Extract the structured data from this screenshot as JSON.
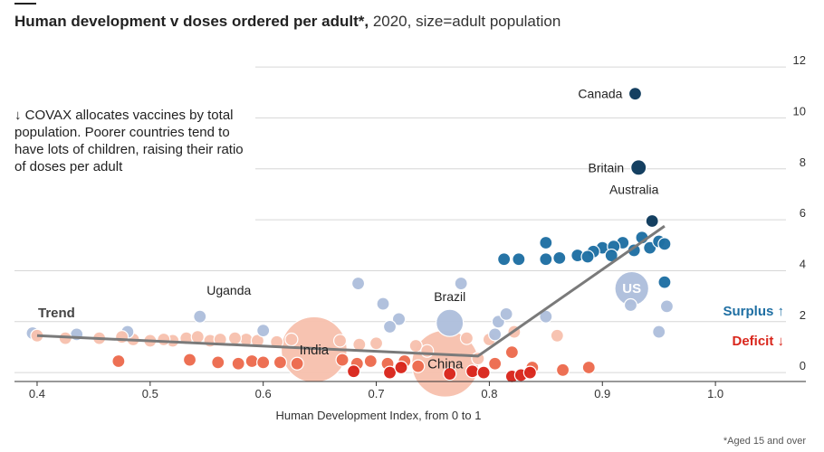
{
  "title": {
    "main": "Human development v doses ordered per adult*,",
    "sub": " 2020, size=adult population"
  },
  "annotation": "↓ COVAX allocates vaccines by total population. Poorer countries tend to have lots of children, raising their ratio of doses per adult",
  "footnote": "*Aged 15 and over",
  "colors": {
    "surplus_dark": "#0d3a5c",
    "surplus_mid": "#1f6fa3",
    "surplus_light": "#aebfdc",
    "deficit_light": "#f7c1ae",
    "deficit_mid": "#ec6b4e",
    "deficit_dark": "#d9261c",
    "trend": "#7a7a7a",
    "surplus_label": "#1f6fa3",
    "deficit_label": "#d9261c"
  },
  "chart_data": {
    "type": "scatter",
    "xlabel": "Human Development Index, from 0 to 1",
    "ylabel": "",
    "xlim": [
      0.38,
      1.08
    ],
    "ylim": [
      -0.35,
      12.5
    ],
    "x_ticks": [
      0.4,
      0.5,
      0.6,
      0.7,
      0.8,
      0.9,
      1.0
    ],
    "x_tick_labels": [
      "0.4",
      "0.5",
      "0.6",
      "0.7",
      "0.8",
      "0.9",
      "1.0"
    ],
    "y_ticks": [
      0,
      2,
      4,
      6,
      8,
      10,
      12
    ],
    "grid": true,
    "legend": {
      "surplus": "Surplus ↑",
      "deficit": "Deficit ↓"
    },
    "trend": {
      "label": "Trend",
      "points": [
        [
          0.4,
          1.45
        ],
        [
          0.79,
          0.65
        ],
        [
          0.955,
          5.75
        ]
      ]
    },
    "labelled_points": [
      {
        "name": "Canada",
        "x": 0.929,
        "y": 10.95,
        "pop": 32,
        "group": "surplus_dark"
      },
      {
        "name": "Britain",
        "x": 0.932,
        "y": 8.05,
        "pop": 55,
        "group": "surplus_dark"
      },
      {
        "name": "Australia",
        "x": 0.944,
        "y": 5.95,
        "pop": 21,
        "group": "surplus_dark"
      },
      {
        "name": "US",
        "x": 0.926,
        "y": 3.3,
        "pop": 265,
        "group": "surplus_light"
      },
      {
        "name": "Uganda",
        "x": 0.544,
        "y": 2.2,
        "pop": 22,
        "group": "surplus_light"
      },
      {
        "name": "Brazil",
        "x": 0.765,
        "y": 1.95,
        "pop": 170,
        "group": "surplus_light"
      },
      {
        "name": "India",
        "x": 0.645,
        "y": 0.9,
        "pop": 1000,
        "group": "deficit_light"
      },
      {
        "name": "China",
        "x": 0.761,
        "y": 0.35,
        "pop": 1150,
        "group": "deficit_light"
      }
    ],
    "points": [
      {
        "x": 0.396,
        "y": 1.55,
        "pop": 10,
        "group": "surplus_light"
      },
      {
        "x": 0.435,
        "y": 1.5,
        "pop": 8,
        "group": "surplus_light"
      },
      {
        "x": 0.48,
        "y": 1.6,
        "pop": 8,
        "group": "surplus_light"
      },
      {
        "x": 0.6,
        "y": 1.65,
        "pop": 6,
        "group": "surplus_light"
      },
      {
        "x": 0.684,
        "y": 3.5,
        "pop": 12,
        "group": "surplus_light"
      },
      {
        "x": 0.706,
        "y": 2.7,
        "pop": 18,
        "group": "surplus_light"
      },
      {
        "x": 0.72,
        "y": 2.1,
        "pop": 38,
        "group": "surplus_light"
      },
      {
        "x": 0.712,
        "y": 1.8,
        "pop": 12,
        "group": "surplus_light"
      },
      {
        "x": 0.775,
        "y": 3.5,
        "pop": 12,
        "group": "surplus_light"
      },
      {
        "x": 0.808,
        "y": 2.0,
        "pop": 8,
        "group": "surplus_light"
      },
      {
        "x": 0.815,
        "y": 2.3,
        "pop": 8,
        "group": "surplus_light"
      },
      {
        "x": 0.805,
        "y": 1.5,
        "pop": 6,
        "group": "surplus_light"
      },
      {
        "x": 0.85,
        "y": 2.2,
        "pop": 10,
        "group": "surplus_light"
      },
      {
        "x": 0.925,
        "y": 2.65,
        "pop": 15,
        "group": "surplus_light"
      },
      {
        "x": 0.95,
        "y": 1.6,
        "pop": 7,
        "group": "surplus_light"
      },
      {
        "x": 0.957,
        "y": 2.6,
        "pop": 7,
        "group": "surplus_light"
      },
      {
        "x": 0.813,
        "y": 4.45,
        "pop": 8,
        "group": "surplus_mid"
      },
      {
        "x": 0.826,
        "y": 4.45,
        "pop": 8,
        "group": "surplus_mid"
      },
      {
        "x": 0.85,
        "y": 5.1,
        "pop": 9,
        "group": "surplus_mid"
      },
      {
        "x": 0.85,
        "y": 4.45,
        "pop": 6,
        "group": "surplus_mid"
      },
      {
        "x": 0.862,
        "y": 4.5,
        "pop": 8,
        "group": "surplus_mid"
      },
      {
        "x": 0.878,
        "y": 4.6,
        "pop": 12,
        "group": "surplus_mid"
      },
      {
        "x": 0.892,
        "y": 4.75,
        "pop": 14,
        "group": "surplus_mid"
      },
      {
        "x": 0.9,
        "y": 4.9,
        "pop": 16,
        "group": "surplus_mid"
      },
      {
        "x": 0.91,
        "y": 4.95,
        "pop": 12,
        "group": "surplus_mid"
      },
      {
        "x": 0.918,
        "y": 5.1,
        "pop": 22,
        "group": "surplus_mid"
      },
      {
        "x": 0.928,
        "y": 4.8,
        "pop": 12,
        "group": "surplus_mid"
      },
      {
        "x": 0.935,
        "y": 5.3,
        "pop": 16,
        "group": "surplus_mid"
      },
      {
        "x": 0.942,
        "y": 4.9,
        "pop": 12,
        "group": "surplus_mid"
      },
      {
        "x": 0.95,
        "y": 5.15,
        "pop": 10,
        "group": "surplus_mid"
      },
      {
        "x": 0.955,
        "y": 5.05,
        "pop": 8,
        "group": "surplus_mid"
      },
      {
        "x": 0.908,
        "y": 4.6,
        "pop": 9,
        "group": "surplus_mid"
      },
      {
        "x": 0.887,
        "y": 4.55,
        "pop": 8,
        "group": "surplus_mid"
      },
      {
        "x": 0.955,
        "y": 3.55,
        "pop": 8,
        "group": "surplus_mid"
      },
      {
        "x": 0.4,
        "y": 1.45,
        "pop": 8,
        "group": "deficit_light"
      },
      {
        "x": 0.425,
        "y": 1.35,
        "pop": 7,
        "group": "deficit_light"
      },
      {
        "x": 0.455,
        "y": 1.35,
        "pop": 10,
        "group": "deficit_light"
      },
      {
        "x": 0.475,
        "y": 1.4,
        "pop": 7,
        "group": "deficit_light"
      },
      {
        "x": 0.485,
        "y": 1.3,
        "pop": 12,
        "group": "deficit_light"
      },
      {
        "x": 0.5,
        "y": 1.25,
        "pop": 8,
        "group": "deficit_light"
      },
      {
        "x": 0.512,
        "y": 1.3,
        "pop": 7,
        "group": "deficit_light"
      },
      {
        "x": 0.52,
        "y": 1.25,
        "pop": 10,
        "group": "deficit_light"
      },
      {
        "x": 0.532,
        "y": 1.35,
        "pop": 18,
        "group": "deficit_light"
      },
      {
        "x": 0.542,
        "y": 1.4,
        "pop": 12,
        "group": "deficit_light"
      },
      {
        "x": 0.553,
        "y": 1.25,
        "pop": 8,
        "group": "deficit_light"
      },
      {
        "x": 0.562,
        "y": 1.3,
        "pop": 8,
        "group": "deficit_light"
      },
      {
        "x": 0.575,
        "y": 1.35,
        "pop": 10,
        "group": "deficit_light"
      },
      {
        "x": 0.585,
        "y": 1.3,
        "pop": 12,
        "group": "deficit_light"
      },
      {
        "x": 0.595,
        "y": 1.25,
        "pop": 8,
        "group": "deficit_light"
      },
      {
        "x": 0.612,
        "y": 1.2,
        "pop": 8,
        "group": "deficit_light"
      },
      {
        "x": 0.625,
        "y": 1.3,
        "pop": 12,
        "group": "deficit_light"
      },
      {
        "x": 0.668,
        "y": 1.25,
        "pop": 10,
        "group": "deficit_light"
      },
      {
        "x": 0.685,
        "y": 1.1,
        "pop": 8,
        "group": "deficit_light"
      },
      {
        "x": 0.7,
        "y": 1.15,
        "pop": 10,
        "group": "deficit_light"
      },
      {
        "x": 0.735,
        "y": 1.05,
        "pop": 12,
        "group": "deficit_light"
      },
      {
        "x": 0.745,
        "y": 0.85,
        "pop": 10,
        "group": "deficit_light"
      },
      {
        "x": 0.78,
        "y": 1.35,
        "pop": 14,
        "group": "deficit_light"
      },
      {
        "x": 0.8,
        "y": 1.3,
        "pop": 10,
        "group": "deficit_light"
      },
      {
        "x": 0.822,
        "y": 1.6,
        "pop": 18,
        "group": "deficit_light"
      },
      {
        "x": 0.86,
        "y": 1.45,
        "pop": 12,
        "group": "deficit_light"
      },
      {
        "x": 0.79,
        "y": 0.55,
        "pop": 7,
        "group": "deficit_light"
      },
      {
        "x": 0.472,
        "y": 0.45,
        "pop": 8,
        "group": "deficit_mid"
      },
      {
        "x": 0.535,
        "y": 0.5,
        "pop": 8,
        "group": "deficit_mid"
      },
      {
        "x": 0.56,
        "y": 0.4,
        "pop": 28,
        "group": "deficit_mid"
      },
      {
        "x": 0.578,
        "y": 0.35,
        "pop": 14,
        "group": "deficit_mid"
      },
      {
        "x": 0.59,
        "y": 0.45,
        "pop": 12,
        "group": "deficit_mid"
      },
      {
        "x": 0.6,
        "y": 0.4,
        "pop": 8,
        "group": "deficit_mid"
      },
      {
        "x": 0.615,
        "y": 0.4,
        "pop": 10,
        "group": "deficit_mid"
      },
      {
        "x": 0.63,
        "y": 0.35,
        "pop": 8,
        "group": "deficit_mid"
      },
      {
        "x": 0.67,
        "y": 0.5,
        "pop": 8,
        "group": "deficit_mid"
      },
      {
        "x": 0.683,
        "y": 0.35,
        "pop": 10,
        "group": "deficit_mid"
      },
      {
        "x": 0.695,
        "y": 0.45,
        "pop": 8,
        "group": "deficit_mid"
      },
      {
        "x": 0.71,
        "y": 0.35,
        "pop": 8,
        "group": "deficit_mid"
      },
      {
        "x": 0.725,
        "y": 0.45,
        "pop": 8,
        "group": "deficit_mid"
      },
      {
        "x": 0.737,
        "y": 0.25,
        "pop": 8,
        "group": "deficit_mid"
      },
      {
        "x": 0.805,
        "y": 0.35,
        "pop": 8,
        "group": "deficit_mid"
      },
      {
        "x": 0.82,
        "y": 0.8,
        "pop": 16,
        "group": "deficit_mid"
      },
      {
        "x": 0.838,
        "y": 0.2,
        "pop": 10,
        "group": "deficit_mid"
      },
      {
        "x": 0.865,
        "y": 0.1,
        "pop": 12,
        "group": "deficit_mid"
      },
      {
        "x": 0.888,
        "y": 0.2,
        "pop": 8,
        "group": "deficit_mid"
      },
      {
        "x": 0.68,
        "y": 0.05,
        "pop": 9,
        "group": "deficit_dark"
      },
      {
        "x": 0.712,
        "y": 0.0,
        "pop": 8,
        "group": "deficit_dark"
      },
      {
        "x": 0.722,
        "y": 0.2,
        "pop": 8,
        "group": "deficit_dark"
      },
      {
        "x": 0.765,
        "y": -0.05,
        "pop": 8,
        "group": "deficit_dark"
      },
      {
        "x": 0.785,
        "y": 0.05,
        "pop": 8,
        "group": "deficit_dark"
      },
      {
        "x": 0.795,
        "y": 0.0,
        "pop": 8,
        "group": "deficit_dark"
      },
      {
        "x": 0.82,
        "y": -0.15,
        "pop": 12,
        "group": "deficit_dark"
      },
      {
        "x": 0.828,
        "y": -0.1,
        "pop": 7,
        "group": "deficit_dark"
      },
      {
        "x": 0.836,
        "y": 0.0,
        "pop": 7,
        "group": "deficit_dark"
      }
    ]
  }
}
